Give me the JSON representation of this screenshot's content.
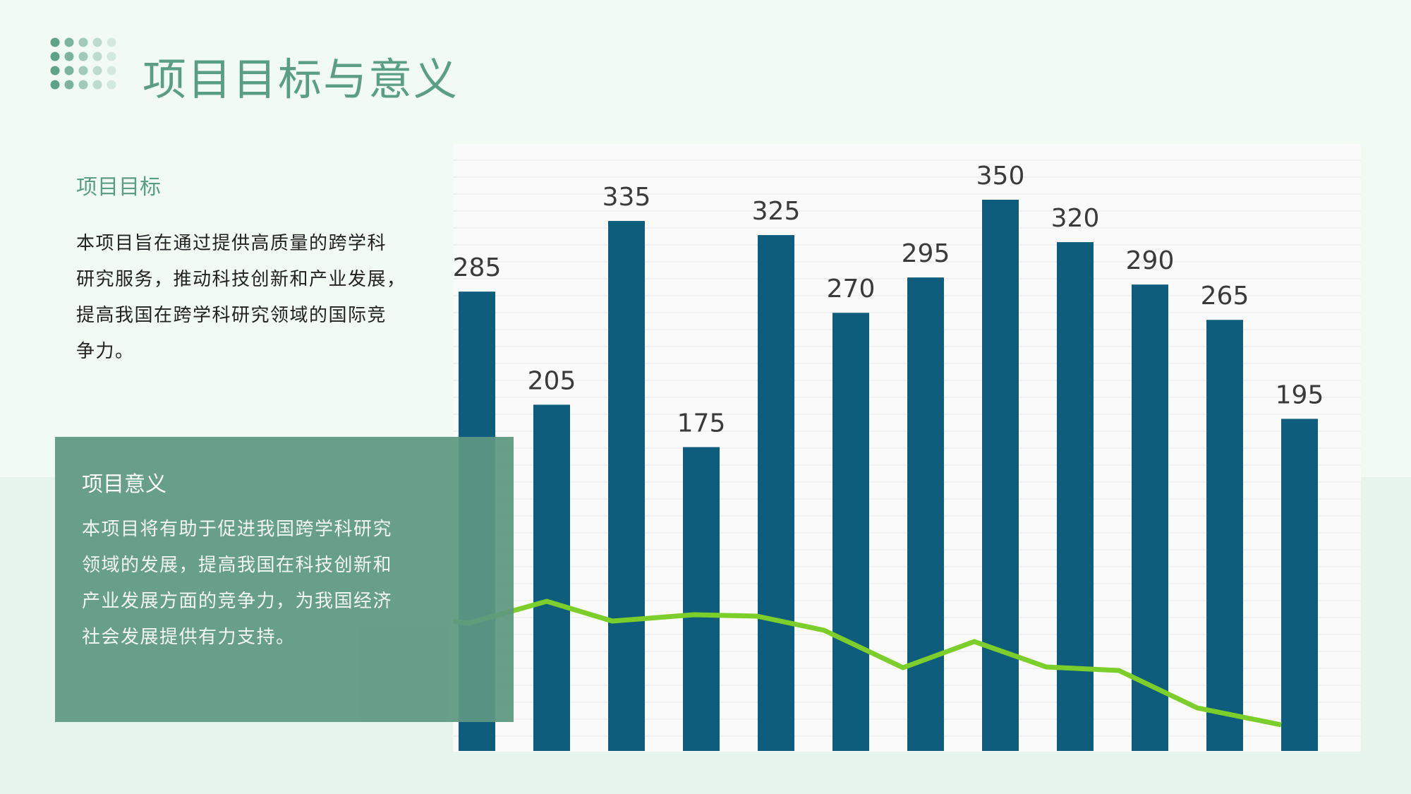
{
  "header": {
    "title": "项目目标与意义"
  },
  "goal": {
    "heading": "项目目标",
    "lines": [
      "本项目旨在通过提供高质量的跨学科",
      "研究服务，推动科技创新和产业发展，",
      "提高我国在跨学科研究领域的国际竞",
      "争力。"
    ]
  },
  "significance": {
    "heading": "项目意义",
    "lines": [
      "本项目将有助于促进我国跨学科研究",
      "领域的发展，提高我国在科技创新和",
      "产业发展方面的竞争力，为我国经济",
      "社会发展提供有力支持。"
    ]
  },
  "chart_data": {
    "type": "bar",
    "color": "#0f5d7c",
    "values": [
      285,
      205,
      335,
      175,
      325,
      270,
      295,
      350,
      320,
      290,
      265,
      195
    ]
  }
}
